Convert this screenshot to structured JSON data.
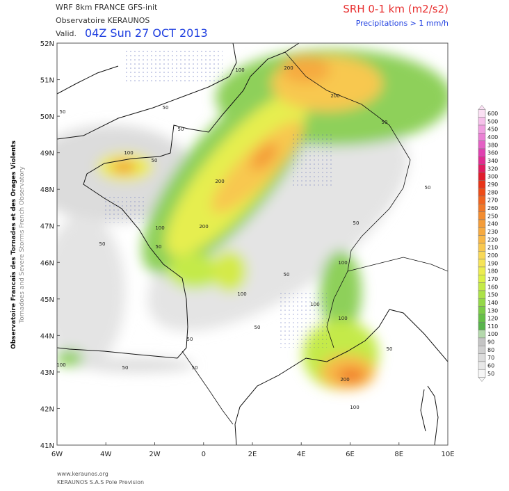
{
  "header": {
    "model": "WRF 8km FRANCE  GFS-init",
    "org": "Observatoire KERAUNOS",
    "valid_label": "Valid.",
    "valid_time": "04Z Sun 27 OCT 2013",
    "parameter": "SRH 0-1 km (m2/s2)",
    "precip_note": "Precipitations > 1 mm/h"
  },
  "side_text": [
    "Observatoire Francais des Tornades et des Orages Violents",
    "Tornadoes and Severe Storms French Observatory"
  ],
  "map": {
    "lat_labels": [
      "52N",
      "51N",
      "50N",
      "49N",
      "48N",
      "47N",
      "46N",
      "45N",
      "44N",
      "43N",
      "42N",
      "41N"
    ],
    "lon_labels": [
      "6W",
      "4W",
      "2W",
      "0",
      "2E",
      "4E",
      "6E",
      "8E",
      "10E"
    ],
    "contour_labels": [
      "100",
      "200",
      "200",
      "50",
      "50",
      "50",
      "50",
      "100",
      "50",
      "200",
      "50",
      "200",
      "100",
      "50",
      "50",
      "50",
      "100",
      "50",
      "100",
      "100",
      "100",
      "50",
      "50",
      "50",
      "100",
      "50",
      "50",
      "200",
      "100"
    ]
  },
  "legend": {
    "levels": [
      {
        "label": "600",
        "color": "#fbe0f4"
      },
      {
        "label": "500",
        "color": "#f6c0ea"
      },
      {
        "label": "450",
        "color": "#f0a0e0"
      },
      {
        "label": "400",
        "color": "#ea80d4"
      },
      {
        "label": "380",
        "color": "#e460c4"
      },
      {
        "label": "360",
        "color": "#e040b0"
      },
      {
        "label": "340",
        "color": "#e02c90"
      },
      {
        "label": "320",
        "color": "#e01c60"
      },
      {
        "label": "300",
        "color": "#e01c2c"
      },
      {
        "label": "290",
        "color": "#e83418"
      },
      {
        "label": "280",
        "color": "#ee4c18"
      },
      {
        "label": "270",
        "color": "#f06420"
      },
      {
        "label": "260",
        "color": "#f07828"
      },
      {
        "label": "250",
        "color": "#f28c30"
      },
      {
        "label": "240",
        "color": "#f49c38"
      },
      {
        "label": "230",
        "color": "#f6aa40"
      },
      {
        "label": "220",
        "color": "#f8b848"
      },
      {
        "label": "210",
        "color": "#f8c850"
      },
      {
        "label": "200",
        "color": "#f8d858"
      },
      {
        "label": "190",
        "color": "#f6e458"
      },
      {
        "label": "180",
        "color": "#ecec50"
      },
      {
        "label": "170",
        "color": "#dcf048"
      },
      {
        "label": "160",
        "color": "#c4ea48"
      },
      {
        "label": "150",
        "color": "#ace248"
      },
      {
        "label": "140",
        "color": "#94d848"
      },
      {
        "label": "130",
        "color": "#7ccc48"
      },
      {
        "label": "120",
        "color": "#66c048"
      },
      {
        "label": "110",
        "color": "#58b44c"
      },
      {
        "label": "100",
        "color": "#b4d8ac"
      },
      {
        "label": "90",
        "color": "#c4c4c4"
      },
      {
        "label": "80",
        "color": "#d0d0d0"
      },
      {
        "label": "70",
        "color": "#dcdcdc"
      },
      {
        "label": "60",
        "color": "#e8e8e8"
      },
      {
        "label": "50",
        "color": "#f6f6f6"
      }
    ]
  },
  "footer": [
    "www.keraunos.org",
    "KERAUNOS S.A.S Pole Prevision"
  ]
}
